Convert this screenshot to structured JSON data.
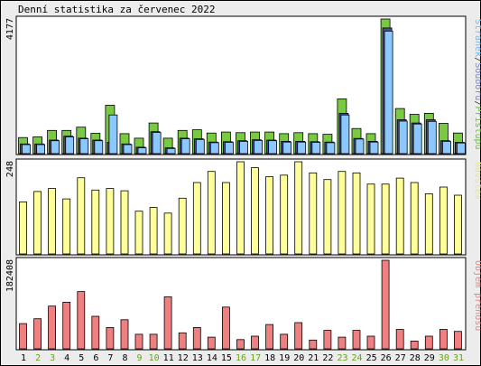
{
  "title": "Denní statistika za červenec 2022",
  "chart_data": [
    {
      "type": "bar",
      "panel": "top",
      "ymax_label": "4177",
      "ylim": [
        0,
        4177
      ],
      "legend": [
        {
          "text": "Stránek",
          "color": "#6fb7ff"
        },
        {
          "text": "/",
          "color": "#333333"
        },
        {
          "text": "Souborů",
          "color": "#7d86c8"
        },
        {
          "text": "/",
          "color": "#333333"
        },
        {
          "text": "Přístupů",
          "color": "#72bd3a"
        }
      ],
      "categories": [
        "1",
        "2",
        "3",
        "4",
        "5",
        "6",
        "7",
        "8",
        "9",
        "10",
        "11",
        "12",
        "13",
        "14",
        "15",
        "16",
        "17",
        "18",
        "19",
        "20",
        "21",
        "22",
        "23",
        "24",
        "25",
        "26",
        "27",
        "28",
        "29",
        "30",
        "31"
      ],
      "series": [
        {
          "name": "Přístupů",
          "color": "#7ac943",
          "values": [
            500,
            520,
            720,
            720,
            820,
            630,
            1500,
            620,
            480,
            950,
            480,
            720,
            740,
            640,
            670,
            650,
            670,
            670,
            620,
            650,
            620,
            600,
            1700,
            780,
            620,
            4177,
            1400,
            1220,
            1250,
            940,
            640
          ]
        },
        {
          "name": "Souborů",
          "color": "#4a4a9a",
          "values": [
            300,
            300,
            420,
            540,
            480,
            420,
            350,
            300,
            200,
            680,
            180,
            480,
            460,
            360,
            370,
            400,
            430,
            420,
            380,
            380,
            370,
            360,
            1250,
            470,
            380,
            3900,
            1050,
            950,
            1050,
            400,
            350
          ]
        },
        {
          "name": "Stránek",
          "color": "#8ac8ff",
          "values": [
            280,
            280,
            400,
            520,
            460,
            400,
            1200,
            280,
            180,
            660,
            160,
            460,
            440,
            340,
            350,
            380,
            410,
            400,
            360,
            360,
            350,
            340,
            1200,
            450,
            360,
            3800,
            1010,
            920,
            1000,
            380,
            330
          ]
        }
      ]
    },
    {
      "type": "bar",
      "panel": "middle",
      "ymax_label": "248",
      "ylim": [
        0,
        248
      ],
      "legend": [
        {
          "text": "Návštěv",
          "color": "#e6e68a"
        }
      ],
      "categories": [
        "1",
        "2",
        "3",
        "4",
        "5",
        "6",
        "7",
        "8",
        "9",
        "10",
        "11",
        "12",
        "13",
        "14",
        "15",
        "16",
        "17",
        "18",
        "19",
        "20",
        "21",
        "22",
        "23",
        "24",
        "25",
        "26",
        "27",
        "28",
        "29",
        "30",
        "31"
      ],
      "series": [
        {
          "name": "Návštěv",
          "color": "#ffff99",
          "values": [
            140,
            168,
            176,
            148,
            205,
            172,
            176,
            170,
            115,
            125,
            110,
            150,
            192,
            222,
            192,
            248,
            232,
            208,
            212,
            248,
            218,
            200,
            222,
            218,
            188,
            188,
            204,
            192,
            162,
            180,
            158
          ]
        }
      ]
    },
    {
      "type": "bar",
      "panel": "bottom",
      "ymax_label": "182408",
      "ylim": [
        0,
        182408
      ],
      "legend": [
        {
          "text": "Objem přenosu",
          "color": "#f08080"
        }
      ],
      "categories": [
        "1",
        "2",
        "3",
        "4",
        "5",
        "6",
        "7",
        "8",
        "9",
        "10",
        "11",
        "12",
        "13",
        "14",
        "15",
        "16",
        "17",
        "18",
        "19",
        "20",
        "21",
        "22",
        "23",
        "24",
        "25",
        "26",
        "27",
        "28",
        "29",
        "30",
        "31"
      ],
      "series": [
        {
          "name": "Objem přenosu",
          "color": "#f08080",
          "values": [
            52000,
            62000,
            88000,
            96000,
            118000,
            67000,
            44000,
            60000,
            30000,
            30000,
            107000,
            33000,
            44000,
            24000,
            86000,
            19000,
            26000,
            50000,
            30000,
            54000,
            18000,
            38000,
            24000,
            38000,
            26000,
            182408,
            40000,
            16000,
            26000,
            40000,
            36000
          ]
        }
      ]
    }
  ],
  "weekend_days": [
    "2",
    "3",
    "9",
    "10",
    "16",
    "17",
    "23",
    "24",
    "30",
    "31"
  ],
  "colors": {
    "weekday_tick": "#000000",
    "weekend_tick": "#6aa121",
    "panel_bg": "#ffffff",
    "border": "#000000"
  }
}
